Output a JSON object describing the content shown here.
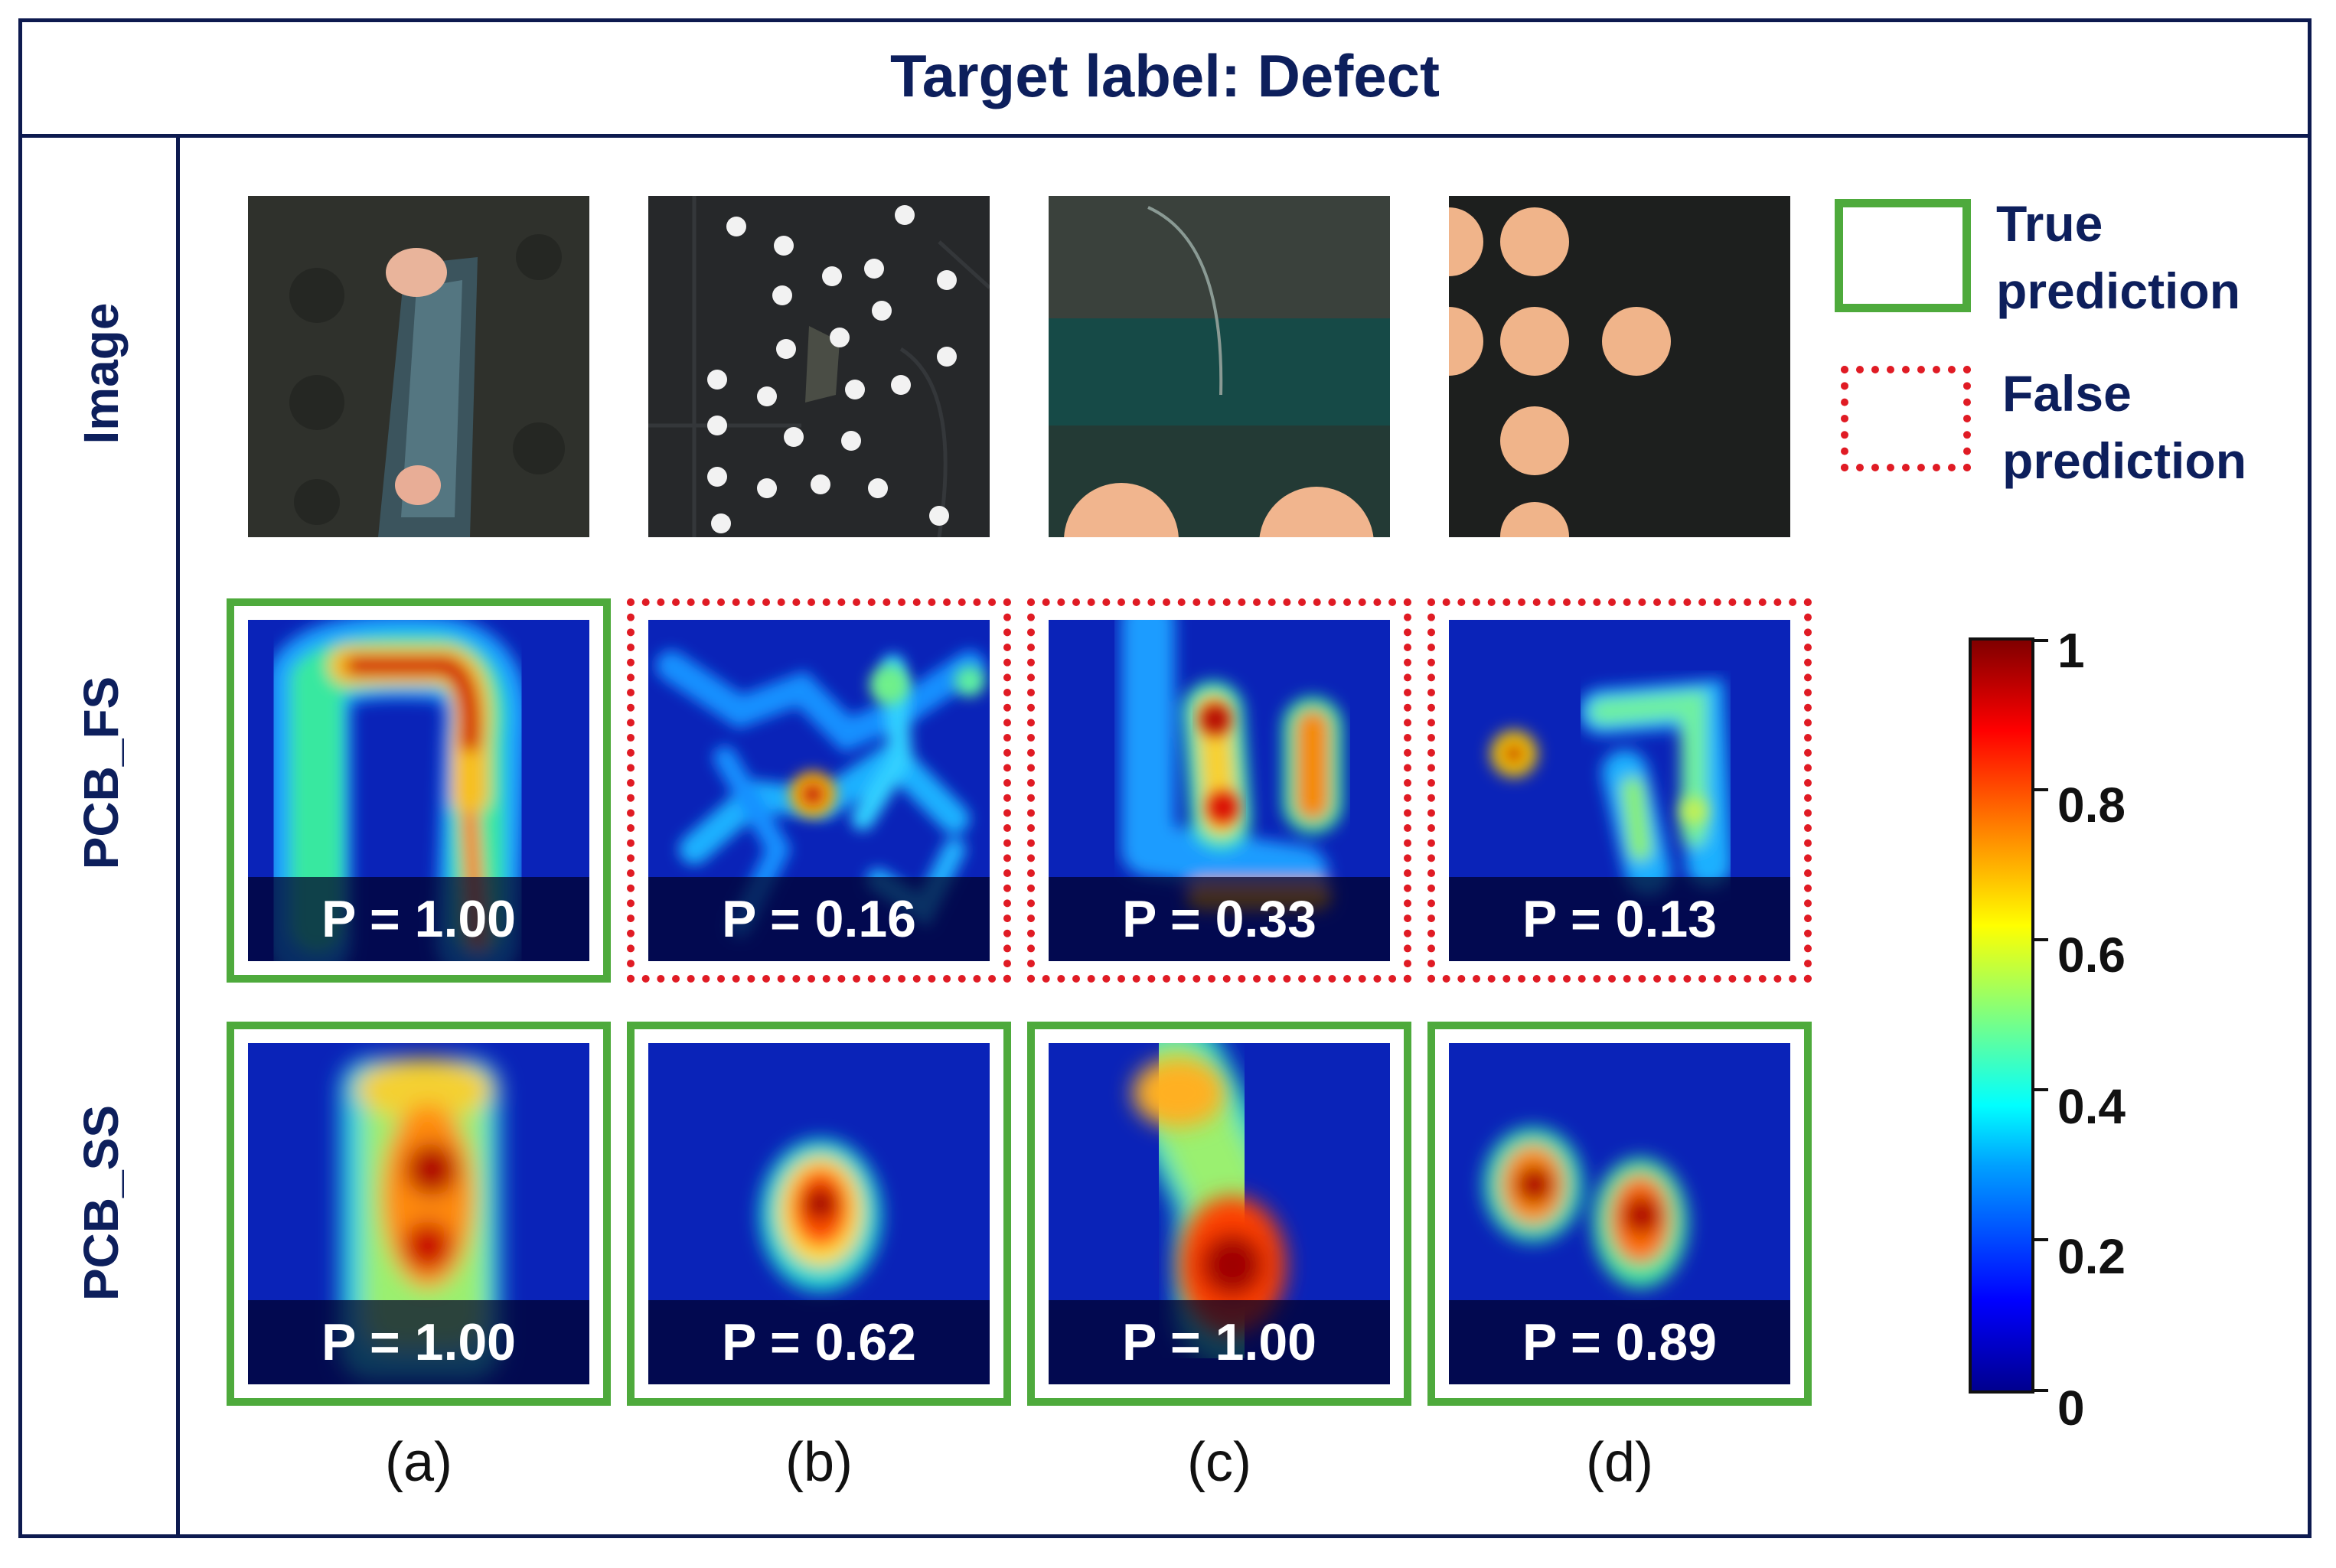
{
  "title": "Target label: Defect",
  "row_labels": [
    "Image",
    "PCB_FS",
    "PCB_SS"
  ],
  "column_labels": [
    "(a)",
    "(b)",
    "(c)",
    "(d)"
  ],
  "pcb_fs_scores": [
    "P = 1.00",
    "P = 0.16",
    "P = 0.33",
    "P = 0.13"
  ],
  "pcb_ss_scores": [
    "P = 1.00",
    "P = 0.62",
    "P = 1.00",
    "P = 0.89"
  ],
  "pcb_fs_outcome": [
    "true",
    "false",
    "false",
    "false"
  ],
  "pcb_ss_outcome": [
    "true",
    "true",
    "true",
    "true"
  ],
  "legend": {
    "true_label": [
      "True",
      "prediction"
    ],
    "false_label": [
      "False",
      "prediction"
    ],
    "true_color": "#4eaa3c",
    "false_color": "#e01b24"
  },
  "colorbar": {
    "colormap": "jet",
    "ticks": [
      "1",
      "0.8",
      "0.6",
      "0.4",
      "0.2",
      "0"
    ]
  }
}
